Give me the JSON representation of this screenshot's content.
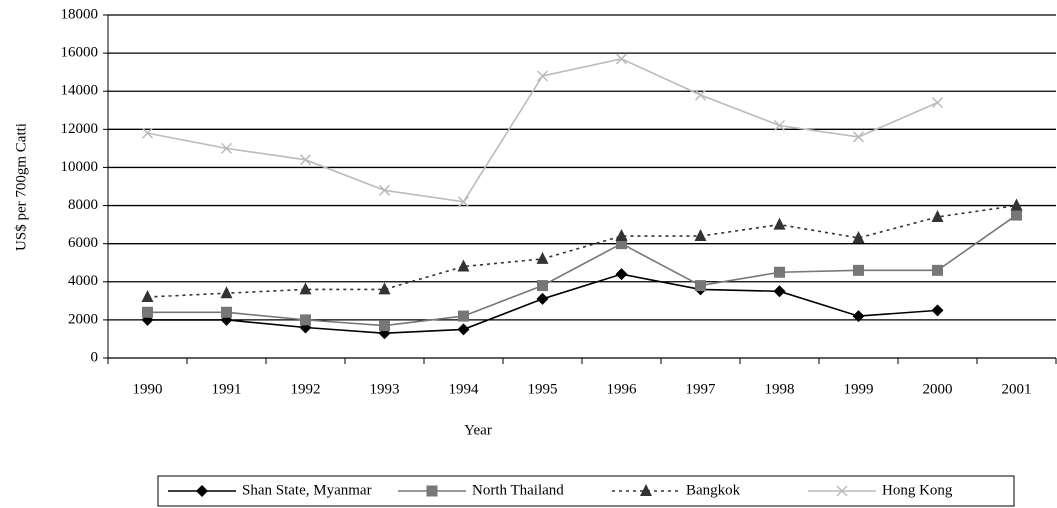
{
  "chart_data": {
    "type": "line",
    "categories": [
      "1990",
      "1991",
      "1992",
      "1993",
      "1994",
      "1995",
      "1996",
      "1997",
      "1998",
      "1999",
      "2000",
      "2001"
    ],
    "series": [
      {
        "name": "Shan State, Myanmar",
        "color": "#000000",
        "marker": "diamond",
        "line_style": "solid",
        "values": [
          2000,
          2000,
          1600,
          1300,
          1500,
          3100,
          4400,
          3600,
          3500,
          2200,
          2500,
          null
        ]
      },
      {
        "name": "North Thailand",
        "color": "#777777",
        "marker": "square",
        "line_style": "solid",
        "values": [
          2400,
          2400,
          2000,
          1700,
          2200,
          3800,
          6000,
          3800,
          4500,
          4600,
          4600,
          7500
        ]
      },
      {
        "name": "Bangkok",
        "color": "#333333",
        "marker": "triangle",
        "line_style": "dotted",
        "values": [
          3200,
          3400,
          3600,
          3600,
          4800,
          5200,
          6400,
          6400,
          7000,
          6300,
          7400,
          8000
        ]
      },
      {
        "name": "Hong Kong",
        "color": "#bbbbbb",
        "marker": "x",
        "line_style": "solid",
        "values": [
          11800,
          11000,
          10400,
          8800,
          8200,
          14800,
          15700,
          13800,
          12200,
          11600,
          13400,
          null
        ]
      }
    ],
    "xlabel": "Year",
    "ylabel": "US$ per 700gm Catti",
    "ylim": [
      0,
      18000
    ],
    "yticks": [
      0,
      2000,
      4000,
      6000,
      8000,
      10000,
      12000,
      14000,
      16000,
      18000
    ],
    "grid": true,
    "legend": "bottom"
  }
}
